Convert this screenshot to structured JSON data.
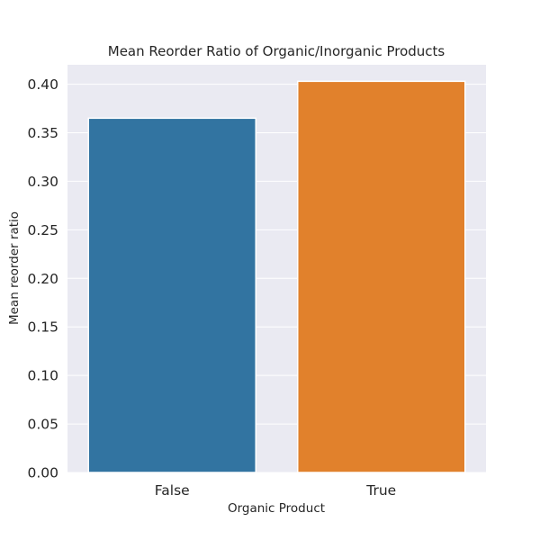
{
  "chart_data": {
    "type": "bar",
    "title": "Mean Reorder Ratio of Organic/Inorganic Products",
    "xlabel": "Organic Product",
    "ylabel": "Mean reorder ratio",
    "categories": [
      "False",
      "True"
    ],
    "values": [
      0.365,
      0.403
    ],
    "colors": [
      "#3274a1",
      "#e1812c"
    ],
    "ylim": [
      0,
      0.42
    ],
    "yticks": [
      "0.00",
      "0.05",
      "0.10",
      "0.15",
      "0.20",
      "0.25",
      "0.30",
      "0.35",
      "0.40"
    ],
    "grid": true,
    "background": "#eaeaf2",
    "legend": "none"
  }
}
